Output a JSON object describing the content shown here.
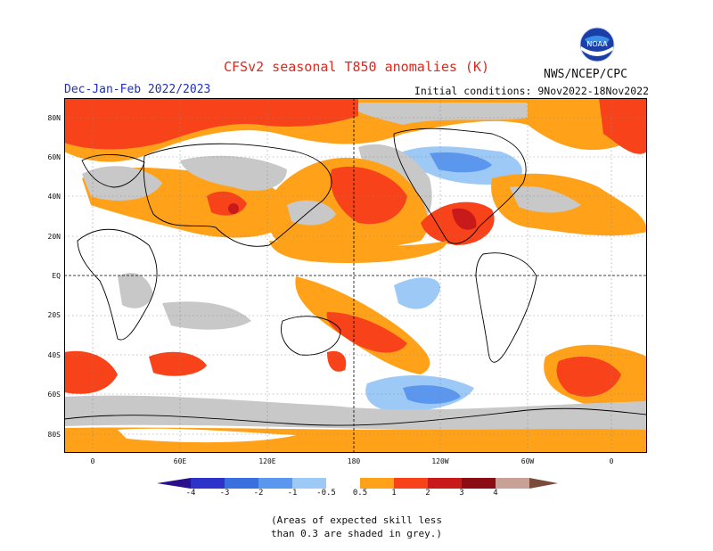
{
  "header": {
    "title": "CFSv2 seasonal T850 anomalies (K)",
    "period": "Dec-Jan-Feb 2022/2023",
    "initial_conditions": "Initial conditions: 9Nov2022-18Nov2022",
    "agency": "NWS/NCEP/CPC",
    "logo_text": "NOAA"
  },
  "map": {
    "lat_labels": [
      "80N",
      "60N",
      "40N",
      "20N",
      "EQ",
      "20S",
      "40S",
      "60S",
      "80S"
    ],
    "lon_labels": [
      "0",
      "60E",
      "120E",
      "180",
      "120W",
      "60W",
      "0"
    ]
  },
  "colorbar": {
    "labels": [
      "-4",
      "-3",
      "-2",
      "-1",
      "-0.5",
      "0.5",
      "1",
      "2",
      "3",
      "4"
    ],
    "colors": {
      "lt_neg4": "#2a0f8c",
      "neg4_neg3": "#2d33c8",
      "neg3_neg2": "#3a6fe0",
      "neg2_neg1": "#5b97ee",
      "neg1_neg05": "#9cc9f5",
      "neutral": "#ffffff",
      "p05_1": "#ffa21a",
      "p1_2": "#f7421a",
      "p2_3": "#c81a1a",
      "p3_4": "#8a0d14",
      "p4_5": "#c8a096",
      "gt5": "#7a4a3a"
    },
    "low_skill_grey": "#c8c8c8"
  },
  "note": {
    "line1": "(Areas of expected skill less",
    "line2": "than 0.3 are shaded in grey.)"
  }
}
